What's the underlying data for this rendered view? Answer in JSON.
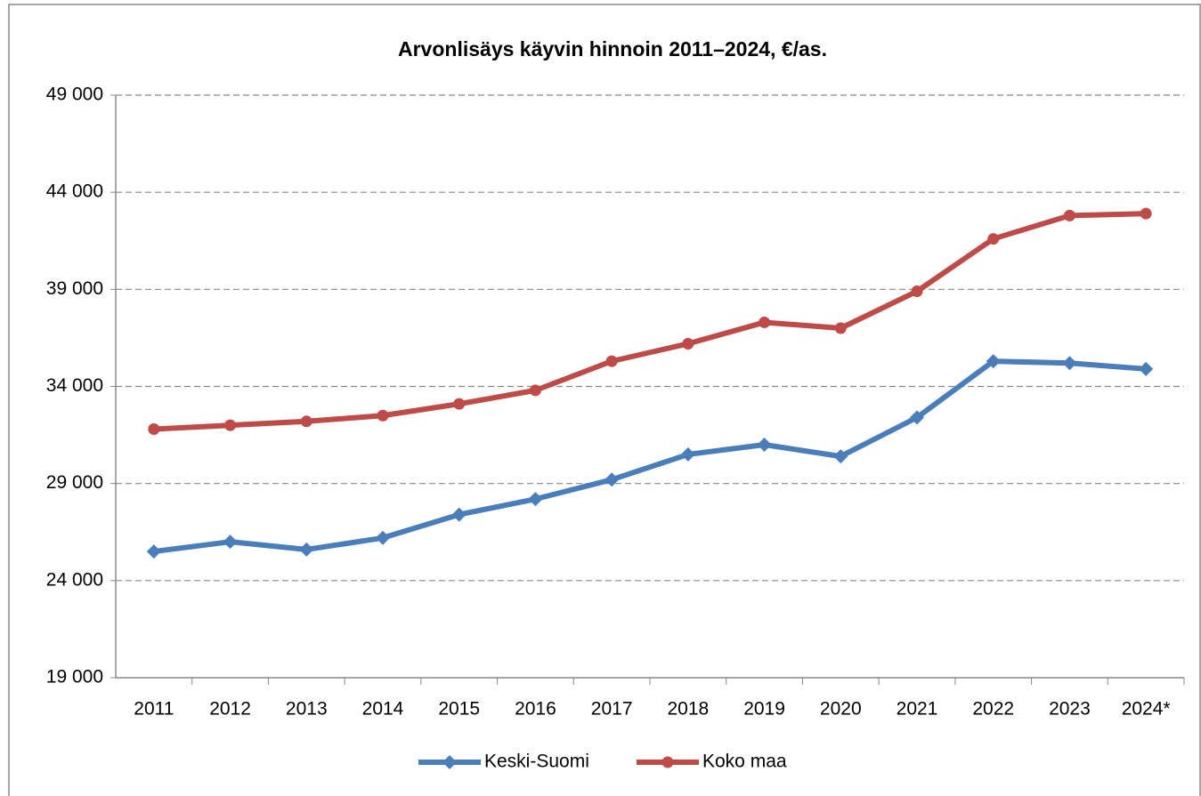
{
  "chart_data": {
    "type": "line",
    "title": "Arvonlisäys käyvin hinnoin 2011–2024, €/as.",
    "categories": [
      "2011",
      "2012",
      "2013",
      "2014",
      "2015",
      "2016",
      "2017",
      "2018",
      "2019",
      "2020",
      "2021",
      "2022",
      "2023",
      "2024*"
    ],
    "series": [
      {
        "name": "Keski-Suomi",
        "color": "#4a7ebb",
        "marker": "diamond",
        "values": [
          25500,
          26000,
          25600,
          26200,
          27400,
          28200,
          29200,
          30500,
          31000,
          30400,
          32400,
          35300,
          35200,
          34900
        ]
      },
      {
        "name": "Koko maa",
        "color": "#be4b48",
        "marker": "circle",
        "values": [
          31800,
          32000,
          32200,
          32500,
          33100,
          33800,
          35300,
          36200,
          37300,
          37000,
          38900,
          41600,
          42800,
          42900
        ]
      }
    ],
    "ylim": [
      19000,
      49000
    ],
    "yticks": [
      {
        "value": 19000,
        "label": "19 000"
      },
      {
        "value": 24000,
        "label": "24 000"
      },
      {
        "value": 29000,
        "label": "29 000"
      },
      {
        "value": 34000,
        "label": "34 000"
      },
      {
        "value": 39000,
        "label": "39 000"
      },
      {
        "value": 44000,
        "label": "44 000"
      },
      {
        "value": 49000,
        "label": "49 000"
      }
    ],
    "grid": true,
    "legend": "bottom"
  }
}
